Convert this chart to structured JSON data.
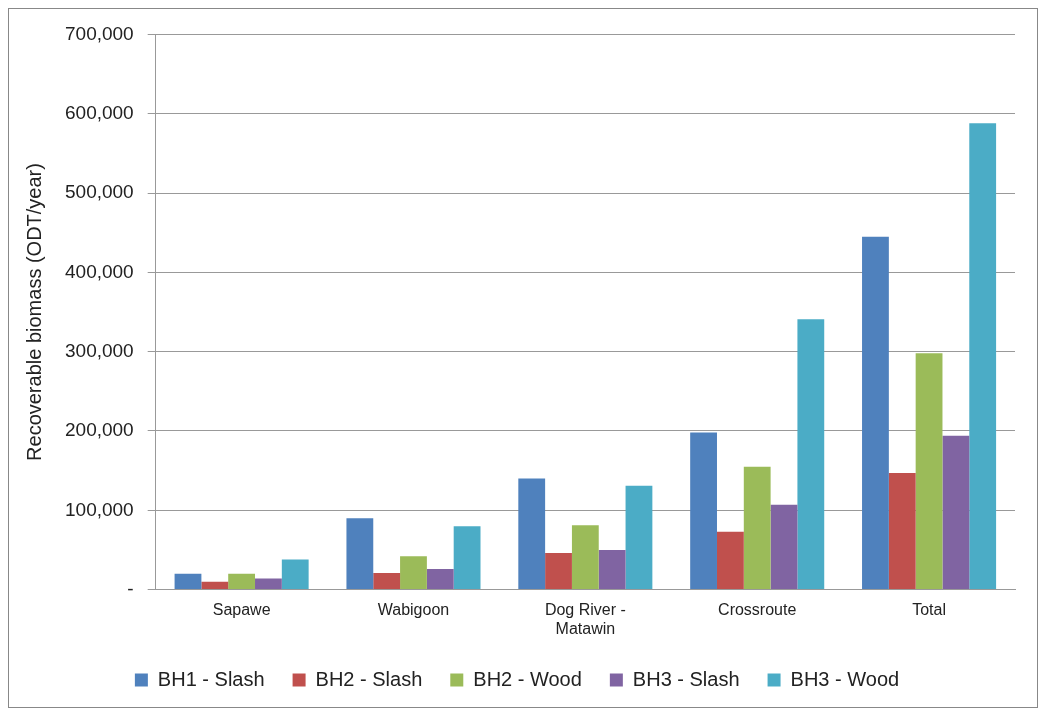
{
  "chart_data": {
    "type": "bar",
    "ylabel": "Recoverable biomass (ODT/year)",
    "categories": [
      "Sapawe",
      "Wabigoon",
      "Dog River - Matawin",
      "Crossroute",
      "Total"
    ],
    "series": [
      {
        "name": "BH1 - Slash",
        "color": "#4f81bd",
        "values": [
          20000,
          90000,
          140000,
          198000,
          445000
        ]
      },
      {
        "name": "BH2 - Slash",
        "color": "#c0504d",
        "values": [
          10000,
          21000,
          46000,
          73000,
          147000
        ]
      },
      {
        "name": "BH2 - Wood",
        "color": "#9bbb59",
        "values": [
          20000,
          42000,
          81000,
          155000,
          298000
        ]
      },
      {
        "name": "BH3 - Slash",
        "color": "#8064a2",
        "values": [
          14000,
          26000,
          50000,
          107000,
          194000
        ]
      },
      {
        "name": "BH3 - Wood",
        "color": "#4bacc6",
        "values": [
          38000,
          80000,
          131000,
          341000,
          588000
        ]
      }
    ],
    "ylim": [
      0,
      700000
    ],
    "yticks": [
      {
        "value": 0,
        "label": "-"
      },
      {
        "value": 100000,
        "label": "100,000"
      },
      {
        "value": 200000,
        "label": "200,000"
      },
      {
        "value": 300000,
        "label": "300,000"
      },
      {
        "value": 400000,
        "label": "400,000"
      },
      {
        "value": 500000,
        "label": "500,000"
      },
      {
        "value": 600000,
        "label": "600,000"
      },
      {
        "value": 700000,
        "label": "700,000"
      }
    ],
    "grid": "y",
    "legend": "bottom"
  }
}
